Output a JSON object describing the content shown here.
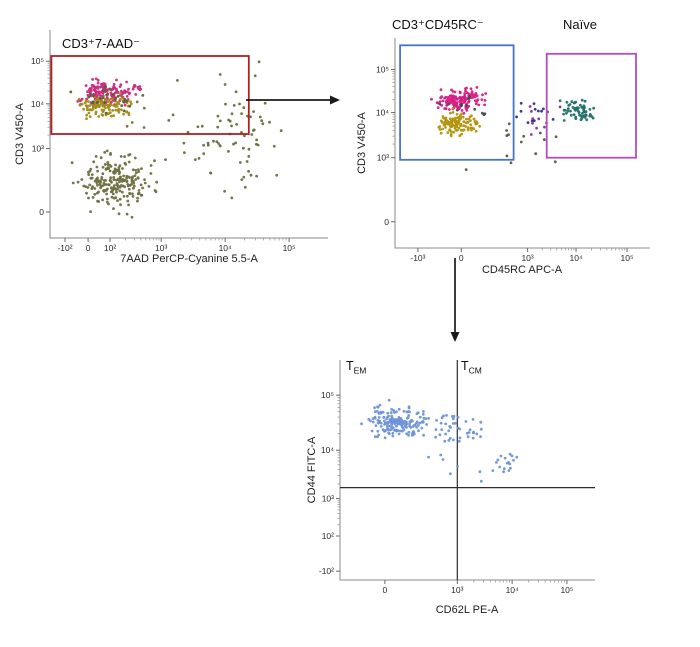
{
  "page": {
    "background": "#ffffff"
  },
  "arrows": [
    {
      "name": "from-cd3-7aad-gate-to-plot2",
      "direction": "right"
    },
    {
      "name": "from-cd3-cd45rc-gate-to-plot3",
      "direction": "down"
    }
  ],
  "chart_data": [
    {
      "type": "scatter",
      "id": "plot-7aad-vs-cd3",
      "xlabel": "7AAD PerCP-Cyanine 5.5-A",
      "ylabel": "CD3 V450-A",
      "scale": "biexponential",
      "x_ticks": [
        {
          "label": "-10²",
          "f": 0.054
        },
        {
          "label": "0",
          "f": 0.137
        },
        {
          "label": "10²",
          "f": 0.216
        },
        {
          "label": "10³",
          "f": 0.4
        },
        {
          "label": "10⁴",
          "f": 0.63
        },
        {
          "label": "10⁵",
          "f": 0.86
        }
      ],
      "y_ticks": [
        {
          "label": "0",
          "f": 0.125
        },
        {
          "label": "10³",
          "f": 0.43
        },
        {
          "label": "10⁴",
          "f": 0.645
        },
        {
          "label": "10⁵",
          "f": 0.85
        }
      ],
      "gates": [
        {
          "label": "CD3⁺7-AAD⁻",
          "color": "#a92323",
          "x0": 0.005,
          "y0": 0.5,
          "x1": 0.715,
          "y1": 0.875
        }
      ],
      "clusters": [
        {
          "name": "cd3pos-magenta",
          "n": 150,
          "cx": 0.21,
          "cy": 0.7,
          "sx": 0.1,
          "sy": 0.055,
          "color": "#cb2a80"
        },
        {
          "name": "cd3pos-olive",
          "n": 110,
          "cx": 0.2,
          "cy": 0.635,
          "sx": 0.09,
          "sy": 0.05,
          "color": "#a18d1c"
        },
        {
          "name": "cd3pos-dark",
          "n": 28,
          "cx": 0.22,
          "cy": 0.67,
          "sx": 0.11,
          "sy": 0.065,
          "color": "#58622e"
        },
        {
          "name": "debris-cloud",
          "n": 215,
          "cx": 0.23,
          "cy": 0.27,
          "sx": 0.12,
          "sy": 0.13,
          "color": "#6e7040"
        },
        {
          "name": "right-scatter",
          "n": 65,
          "cx": 0.66,
          "cy": 0.5,
          "sx": 0.17,
          "sy": 0.28,
          "color": "#67703c"
        },
        {
          "name": "sparse",
          "n": 18,
          "cx": 0.45,
          "cy": 0.45,
          "sx": 0.28,
          "sy": 0.3,
          "color": "#6e7040"
        }
      ],
      "quadrants": null
    },
    {
      "type": "scatter",
      "id": "plot-cd45rc-vs-cd3",
      "xlabel": "CD45RC APC-A",
      "ylabel": "CD3 V450-A",
      "scale": "biexponential",
      "x_ticks": [
        {
          "label": "-10³",
          "f": 0.09
        },
        {
          "label": "0",
          "f": 0.26
        },
        {
          "label": "10³",
          "f": 0.52
        },
        {
          "label": "10⁴",
          "f": 0.71
        },
        {
          "label": "10⁵",
          "f": 0.91
        }
      ],
      "y_ticks": [
        {
          "label": "0",
          "f": 0.125
        },
        {
          "label": "10³",
          "f": 0.43
        },
        {
          "label": "10⁴",
          "f": 0.645
        },
        {
          "label": "10⁵",
          "f": 0.85
        }
      ],
      "gates": [
        {
          "label": "CD3⁺CD45RC⁻",
          "color": "#4a73c9",
          "x0": 0.02,
          "y0": 0.42,
          "x1": 0.465,
          "y1": 0.965
        },
        {
          "label": "Naïve",
          "color": "#b14fc1",
          "x0": 0.595,
          "y0": 0.43,
          "x1": 0.945,
          "y1": 0.925
        }
      ],
      "clusters": [
        {
          "name": "cd45rcneg-magenta",
          "n": 140,
          "cx": 0.26,
          "cy": 0.7,
          "sx": 0.09,
          "sy": 0.05,
          "color": "#d81e84"
        },
        {
          "name": "cd45rcneg-olive",
          "n": 105,
          "cx": 0.24,
          "cy": 0.595,
          "sx": 0.085,
          "sy": 0.05,
          "color": "#b2930f"
        },
        {
          "name": "in-gate-dark",
          "n": 12,
          "cx": 0.3,
          "cy": 0.66,
          "sx": 0.1,
          "sy": 0.07,
          "color": "#44484a"
        },
        {
          "name": "naive-teal",
          "n": 60,
          "cx": 0.72,
          "cy": 0.655,
          "sx": 0.075,
          "sy": 0.05,
          "color": "#20716b"
        },
        {
          "name": "mid-navy",
          "n": 13,
          "cx": 0.53,
          "cy": 0.64,
          "sx": 0.07,
          "sy": 0.08,
          "color": "#30308a"
        },
        {
          "name": "mid-purple",
          "n": 10,
          "cx": 0.57,
          "cy": 0.6,
          "sx": 0.09,
          "sy": 0.09,
          "color": "#8c2f9c"
        },
        {
          "name": "sparse",
          "n": 14,
          "cx": 0.48,
          "cy": 0.5,
          "sx": 0.22,
          "sy": 0.11,
          "color": "#565a3a"
        }
      ],
      "quadrants": null
    },
    {
      "type": "scatter",
      "id": "plot-cd62l-vs-cd44",
      "xlabel": "CD62L PE-A",
      "ylabel": "CD44 FITC-A",
      "scale": "biexponential",
      "x_ticks": [
        {
          "label": "0",
          "f": 0.176
        },
        {
          "label": "10³",
          "f": 0.46
        },
        {
          "label": "10⁴",
          "f": 0.675
        },
        {
          "label": "10⁵",
          "f": 0.89
        }
      ],
      "y_ticks": [
        {
          "label": "-10²",
          "f": 0.04
        },
        {
          "label": "10²",
          "f": 0.2
        },
        {
          "label": "10³",
          "f": 0.37
        },
        {
          "label": "10⁴",
          "f": 0.59
        },
        {
          "label": "10⁵",
          "f": 0.84
        }
      ],
      "gates": [],
      "clusters": [
        {
          "name": "tem-main",
          "n": 175,
          "cx": 0.22,
          "cy": 0.72,
          "sx": 0.105,
          "sy": 0.07,
          "color": "#6f93d6"
        },
        {
          "name": "tem-right",
          "n": 28,
          "cx": 0.42,
          "cy": 0.7,
          "sx": 0.05,
          "sy": 0.07,
          "color": "#6f93d6"
        },
        {
          "name": "mid-over-line",
          "n": 14,
          "cx": 0.52,
          "cy": 0.67,
          "sx": 0.045,
          "sy": 0.06,
          "color": "#6f93d6"
        },
        {
          "name": "tcm",
          "n": 16,
          "cx": 0.655,
          "cy": 0.54,
          "sx": 0.05,
          "sy": 0.05,
          "color": "#6f93d6"
        },
        {
          "name": "stragglers",
          "n": 8,
          "cx": 0.45,
          "cy": 0.5,
          "sx": 0.18,
          "sy": 0.085,
          "color": "#6f93d6"
        }
      ],
      "quadrants": {
        "vx": 0.46,
        "hy": 0.42,
        "top_left": {
          "base": "T",
          "sub": "EM"
        },
        "top_right": {
          "base": "T",
          "sub": "CM"
        }
      }
    }
  ]
}
